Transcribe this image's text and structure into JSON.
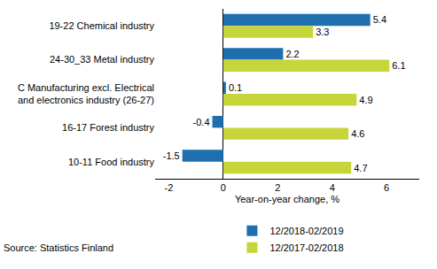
{
  "chart_data": {
    "type": "bar",
    "orientation": "horizontal",
    "categories": [
      "19-22 Chemical industry",
      "24-30_33 Metal industry",
      "C Manufacturing excl. Electrical\nand electronics industry (26-27)",
      "16-17 Forest industry",
      "10-11 Food industry"
    ],
    "series": [
      {
        "name": "12/2018-02/2019",
        "color": "#1f6fae",
        "values": [
          5.4,
          2.2,
          0.1,
          -0.4,
          -1.5
        ]
      },
      {
        "name": "12/2017-02/2018",
        "color": "#c6d63a",
        "values": [
          3.3,
          6.1,
          4.9,
          4.6,
          4.7
        ]
      }
    ],
    "x_label": "Year-on-year change, %",
    "xlim": [
      -2.5,
      7.2
    ],
    "xticks": [
      -2,
      0,
      2,
      4,
      6
    ],
    "grid": false,
    "data_labels": true,
    "legend": "bottom right",
    "annotations": [
      "Source: Statistics Finland"
    ]
  }
}
